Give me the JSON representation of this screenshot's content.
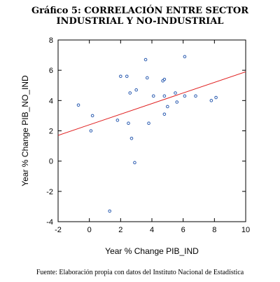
{
  "title_line1": "Gráfico 5: CORRELACIÓN ENTRE SECTOR",
  "title_line2": "INDUSTRIAL Y NO-INDUSTRIAL",
  "footnote": "Fuente: Elaboración propia con datos del Instituto Nacional de Estadística",
  "colors": {
    "points": "#2a5bb0",
    "fit_line": "#e02020",
    "frame": "#000000"
  },
  "chart_data": {
    "type": "scatter",
    "xlabel": "Year % Change PIB_IND",
    "ylabel": "Year % Change PIB_NO_IND",
    "xlim": [
      -2,
      10
    ],
    "ylim": [
      -4,
      8
    ],
    "xticks": [
      -2,
      0,
      2,
      4,
      6,
      8,
      10
    ],
    "yticks": [
      -4,
      -2,
      0,
      2,
      4,
      6,
      8
    ],
    "grid": false,
    "points": [
      {
        "x": -0.7,
        "y": 3.7
      },
      {
        "x": 0.2,
        "y": 3.0
      },
      {
        "x": 0.1,
        "y": 2.0
      },
      {
        "x": 1.3,
        "y": -3.3
      },
      {
        "x": 1.8,
        "y": 2.7
      },
      {
        "x": 2.0,
        "y": 5.6
      },
      {
        "x": 2.4,
        "y": 5.6
      },
      {
        "x": 2.5,
        "y": 2.5
      },
      {
        "x": 2.6,
        "y": 4.5
      },
      {
        "x": 2.7,
        "y": 1.5
      },
      {
        "x": 2.9,
        "y": -0.1
      },
      {
        "x": 3.0,
        "y": 4.7
      },
      {
        "x": 3.6,
        "y": 6.7
      },
      {
        "x": 3.7,
        "y": 5.5
      },
      {
        "x": 3.8,
        "y": 2.5
      },
      {
        "x": 4.1,
        "y": 4.3
      },
      {
        "x": 4.7,
        "y": 5.3
      },
      {
        "x": 4.8,
        "y": 5.4
      },
      {
        "x": 4.8,
        "y": 4.3
      },
      {
        "x": 4.8,
        "y": 3.1
      },
      {
        "x": 5.0,
        "y": 3.6
      },
      {
        "x": 5.5,
        "y": 4.5
      },
      {
        "x": 5.6,
        "y": 3.9
      },
      {
        "x": 6.1,
        "y": 6.9
      },
      {
        "x": 6.1,
        "y": 4.3
      },
      {
        "x": 6.8,
        "y": 4.3
      },
      {
        "x": 7.8,
        "y": 4.0
      },
      {
        "x": 8.1,
        "y": 4.2
      }
    ],
    "fit_line": {
      "x": [
        -2,
        10
      ],
      "y": [
        1.7,
        5.9
      ]
    }
  }
}
